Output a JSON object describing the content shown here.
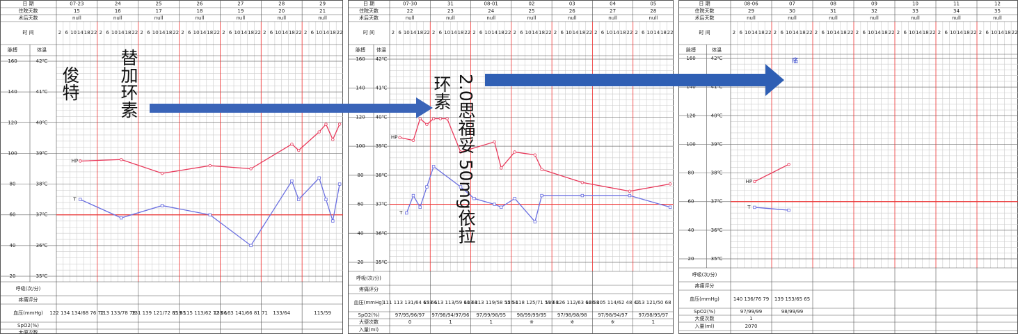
{
  "labels": {
    "date": "日  期",
    "stay": "住院天数",
    "postop": "术后天数",
    "time": "时  间",
    "pulse": "脉搏",
    "temp": "体温",
    "breath": "呼吸(次/分)",
    "pain": "疼痛评分",
    "bp": "血压(mmHg)",
    "spo2": "SpO2(%)",
    "stool": "大便次数",
    "intake": "入量(ml)"
  },
  "times": [
    "2",
    "6",
    "10",
    "14",
    "18",
    "22"
  ],
  "axis": {
    "pulse_lim": [
      20,
      160
    ],
    "temp_lim": [
      35,
      42
    ],
    "pulse_ticks": [
      160,
      140,
      120,
      100,
      80,
      60,
      40,
      20
    ],
    "temp_ticks": [
      {
        "value": 42,
        "label": "42℃"
      },
      {
        "value": 41,
        "label": "41℃"
      },
      {
        "value": 40,
        "label": "40℃"
      },
      {
        "value": 39,
        "label": "39℃"
      },
      {
        "value": 38,
        "label": "38℃"
      },
      {
        "value": 37,
        "label": "37℃"
      },
      {
        "value": 36,
        "label": "36℃"
      },
      {
        "value": 35,
        "label": "35℃"
      }
    ],
    "reference_temp": 37,
    "pulse_tag": "HP",
    "temp_tag": "T"
  },
  "panels": [
    {
      "dates": [
        "07-23",
        "24",
        "25",
        "26",
        "27",
        "28",
        "29"
      ],
      "stay": [
        "15",
        "16",
        "17",
        "18",
        "19",
        "20",
        "21"
      ],
      "postop": [
        "null",
        "null",
        "null",
        "null",
        "null",
        "null",
        "null"
      ],
      "pulse": {
        "x": [
          3,
          9,
          15,
          22,
          28,
          34,
          35,
          38,
          39,
          40,
          41
        ],
        "values": [
          95,
          96,
          87,
          92,
          90,
          106,
          102,
          114,
          119,
          109,
          119
        ]
      },
      "temperature": {
        "x": [
          3,
          9,
          15,
          22,
          28,
          34,
          35,
          38,
          39,
          40,
          41
        ],
        "values": [
          37.5,
          36.9,
          37.3,
          37.0,
          36.0,
          38.1,
          37.5,
          38.2,
          37.5,
          36.8,
          38.0
        ]
      },
      "bp": [
        "122 134 134/68 76 72",
        "113 133/78 78",
        "131 139 121/72 85 65",
        "119 115 113/62 72 66",
        "133 163 141/66 81 71",
        "133/64",
        "115/59"
      ]
    },
    {
      "dates": [
        "07-30",
        "31",
        "08-01",
        "02",
        "03",
        "04",
        "05"
      ],
      "stay": [
        "22",
        "23",
        "24",
        "25",
        "26",
        "27",
        "28"
      ],
      "postop": [
        "null",
        "null",
        "null",
        "null",
        "null",
        "null",
        "null"
      ],
      "pulse": {
        "x": [
          1,
          3,
          4,
          5,
          6,
          7,
          8,
          10,
          15,
          16,
          18,
          21,
          22,
          28,
          35,
          41
        ],
        "values": [
          106,
          104,
          119,
          115,
          119,
          119,
          119,
          96,
          103,
          85,
          96,
          94,
          84,
          75,
          69,
          74
        ]
      },
      "temperature": {
        "x": [
          2,
          3,
          4,
          5,
          6,
          10,
          12,
          15,
          16,
          18,
          21,
          22,
          28,
          35,
          41
        ],
        "values": [
          36.7,
          37.3,
          36.9,
          37.6,
          38.3,
          37.6,
          37.2,
          37.0,
          36.9,
          37.2,
          36.4,
          37.3,
          37.3,
          37.3,
          36.9
        ]
      },
      "bp": [
        "111 113 131/64 65 66",
        "133 113 113/59 60 68",
        "113 113 119/58 55 54",
        "126 118 125/71 59 58",
        "119 126 112/63 66 58",
        "126 105 114/62 48 47",
        "113 121/50 68"
      ],
      "spo2": [
        "97/95/96/97",
        "97/98/94/97/96",
        "97/99/98/95",
        "98/99/99/95",
        "97/98/98/98",
        "97/98/94/97",
        "97/98/95/97"
      ],
      "stool": [
        "0",
        "1",
        "1",
        "※",
        "※",
        "※",
        "1"
      ]
    },
    {
      "dates": [
        "08-06",
        "07",
        "08",
        "09",
        "10",
        "11",
        "12"
      ],
      "stay": [
        "29",
        "30",
        "31",
        "32",
        "33",
        "34",
        "35"
      ],
      "postop": [
        "null",
        "null",
        "null",
        "null",
        "null",
        "null",
        "null"
      ],
      "pulse": {
        "x": [
          3,
          8
        ],
        "values": [
          74,
          86
        ]
      },
      "temperature": {
        "x": [
          3,
          8
        ],
        "values": [
          36.8,
          36.7
        ]
      },
      "bp": [
        "140 136/76 79",
        "139 153/65 65"
      ],
      "spo2": [
        "97/99/99",
        "98/99/99"
      ],
      "stool": [
        "1"
      ],
      "intake": [
        "2070"
      ]
    }
  ],
  "annotations": {
    "a1": "俊特",
    "a2": "替加环素",
    "a3": "环素",
    "a4": "2.0思福妥 50mg依拉",
    "a5": "痛"
  }
}
